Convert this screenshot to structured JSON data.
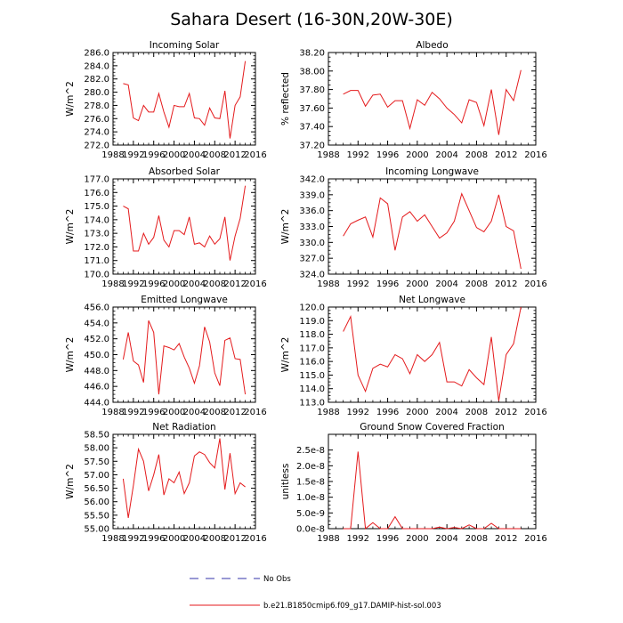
{
  "title": "Sahara Desert (16-30N,20W-30E)",
  "legend": [
    {
      "label": "No Obs",
      "color": "#3333aa",
      "dash": true
    },
    {
      "label": "b.e21.B1850cmip6.f09_g17.DAMIP-hist-sol.003",
      "color": "#e41a1c",
      "dash": false
    }
  ],
  "chart_data": [
    {
      "type": "line",
      "title": "Incoming Solar",
      "ylabel": "W/m^2",
      "xlim": [
        1988,
        2016
      ],
      "ylim": [
        272,
        286
      ],
      "x_ticks": [
        "1988",
        "1992",
        "1996",
        "2000",
        "2004",
        "2008",
        "2012",
        "2016"
      ],
      "y_ticks": [
        "272.0",
        "274.0",
        "276.0",
        "278.0",
        "280.0",
        "282.0",
        "284.0",
        "286.0"
      ],
      "y_tick_values": [
        272,
        274,
        276,
        278,
        280,
        282,
        284,
        286
      ],
      "x": [
        1990,
        1991,
        1992,
        1993,
        1994,
        1995,
        1996,
        1997,
        1998,
        1999,
        2000,
        2001,
        2002,
        2003,
        2004,
        2005,
        2006,
        2007,
        2008,
        2009,
        2010,
        2011,
        2012,
        2013,
        2014
      ],
      "values": [
        281.3,
        281.1,
        276.1,
        275.7,
        278.0,
        277.0,
        277.0,
        279.8,
        277.0,
        274.7,
        278.0,
        277.8,
        277.8,
        279.8,
        276.1,
        276.0,
        275.0,
        277.6,
        276.1,
        276.0,
        280.2,
        273.0,
        278.0,
        279.3,
        284.7
      ],
      "color": "#e41a1c"
    },
    {
      "type": "line",
      "title": "Albedo",
      "ylabel": "% reflected",
      "xlim": [
        1988,
        2016
      ],
      "ylim": [
        37.2,
        38.2
      ],
      "x_ticks": [
        "1988",
        "1992",
        "1996",
        "2000",
        "2004",
        "2008",
        "2012",
        "2016"
      ],
      "y_ticks": [
        "37.20",
        "37.40",
        "37.60",
        "37.80",
        "38.00",
        "38.20"
      ],
      "y_tick_values": [
        37.2,
        37.4,
        37.6,
        37.8,
        38.0,
        38.2
      ],
      "x": [
        1990,
        1991,
        1992,
        1993,
        1994,
        1995,
        1996,
        1997,
        1998,
        1999,
        2000,
        2001,
        2002,
        2003,
        2004,
        2005,
        2006,
        2007,
        2008,
        2009,
        2010,
        2011,
        2012,
        2013,
        2014
      ],
      "values": [
        37.75,
        37.79,
        37.79,
        37.62,
        37.74,
        37.75,
        37.61,
        37.68,
        37.68,
        37.38,
        37.69,
        37.63,
        37.77,
        37.7,
        37.6,
        37.53,
        37.44,
        37.69,
        37.66,
        37.41,
        37.8,
        37.31,
        37.8,
        37.68,
        38.01
      ],
      "color": "#e41a1c"
    },
    {
      "type": "line",
      "title": "Absorbed Solar",
      "ylabel": "W/m^2",
      "xlim": [
        1988,
        2016
      ],
      "ylim": [
        170,
        177
      ],
      "x_ticks": [
        "1988",
        "1992",
        "1996",
        "2000",
        "2004",
        "2008",
        "2012",
        "2016"
      ],
      "y_ticks": [
        "170.0",
        "171.0",
        "172.0",
        "173.0",
        "174.0",
        "175.0",
        "176.0",
        "177.0"
      ],
      "y_tick_values": [
        170,
        171,
        172,
        173,
        174,
        175,
        176,
        177
      ],
      "x": [
        1990,
        1991,
        1992,
        1993,
        1994,
        1995,
        1996,
        1997,
        1998,
        1999,
        2000,
        2001,
        2002,
        2003,
        2004,
        2005,
        2006,
        2007,
        2008,
        2009,
        2010,
        2011,
        2012,
        2013,
        2014
      ],
      "values": [
        175.0,
        174.8,
        171.7,
        171.7,
        173.0,
        172.2,
        172.7,
        174.3,
        172.5,
        172.0,
        173.2,
        173.2,
        172.9,
        174.2,
        172.2,
        172.3,
        172.0,
        172.8,
        172.2,
        172.6,
        174.2,
        171.0,
        172.8,
        174.1,
        176.5
      ],
      "color": "#e41a1c"
    },
    {
      "type": "line",
      "title": "Incoming Longwave",
      "ylabel": "W/m^2",
      "xlim": [
        1988,
        2016
      ],
      "ylim": [
        324,
        342
      ],
      "x_ticks": [
        "1988",
        "1992",
        "1996",
        "2000",
        "2004",
        "2008",
        "2012",
        "2016"
      ],
      "y_ticks": [
        "324.0",
        "327.0",
        "330.0",
        "333.0",
        "336.0",
        "339.0",
        "342.0"
      ],
      "y_tick_values": [
        324,
        327,
        330,
        333,
        336,
        339,
        342
      ],
      "x": [
        1990,
        1991,
        1992,
        1993,
        1994,
        1995,
        1996,
        1997,
        1998,
        1999,
        2000,
        2001,
        2002,
        2003,
        2004,
        2005,
        2006,
        2007,
        2008,
        2009,
        2010,
        2011,
        2012,
        2013,
        2014
      ],
      "values": [
        331.2,
        333.5,
        334.2,
        334.8,
        331.0,
        338.4,
        337.3,
        328.5,
        334.8,
        335.8,
        334.0,
        335.2,
        333.0,
        330.8,
        331.8,
        334.0,
        339.2,
        336.0,
        332.8,
        332.0,
        334.0,
        339.0,
        333.0,
        332.2,
        325.0
      ],
      "color": "#e41a1c"
    },
    {
      "type": "line",
      "title": "Emitted Longwave",
      "ylabel": "W/m^2",
      "xlim": [
        1988,
        2016
      ],
      "ylim": [
        444,
        456
      ],
      "x_ticks": [
        "1988",
        "1992",
        "1996",
        "2000",
        "2004",
        "2008",
        "2012",
        "2016"
      ],
      "y_ticks": [
        "444.0",
        "446.0",
        "448.0",
        "450.0",
        "452.0",
        "454.0",
        "456.0"
      ],
      "y_tick_values": [
        444,
        446,
        448,
        450,
        452,
        454,
        456
      ],
      "x": [
        1990,
        1991,
        1992,
        1993,
        1994,
        1995,
        1996,
        1997,
        1998,
        1999,
        2000,
        2001,
        2002,
        2003,
        2004,
        2005,
        2006,
        2007,
        2008,
        2009,
        2010,
        2011,
        2012,
        2013,
        2014
      ],
      "values": [
        449.4,
        452.8,
        449.2,
        448.7,
        446.5,
        454.3,
        452.8,
        445.0,
        451.1,
        450.9,
        450.6,
        451.4,
        449.7,
        448.3,
        446.4,
        448.6,
        453.5,
        451.6,
        447.7,
        446.1,
        451.8,
        452.1,
        449.5,
        449.4,
        445.0
      ],
      "color": "#e41a1c"
    },
    {
      "type": "line",
      "title": "Net Longwave",
      "ylabel": "W/m^2",
      "xlim": [
        1988,
        2016
      ],
      "ylim": [
        113,
        120
      ],
      "x_ticks": [
        "1988",
        "1992",
        "1996",
        "2000",
        "2004",
        "2008",
        "2012",
        "2016"
      ],
      "y_ticks": [
        "113.0",
        "114.0",
        "115.0",
        "116.0",
        "117.0",
        "118.0",
        "119.0",
        "120.0"
      ],
      "y_tick_values": [
        113,
        114,
        115,
        116,
        117,
        118,
        119,
        120
      ],
      "x": [
        1990,
        1991,
        1992,
        1993,
        1994,
        1995,
        1996,
        1997,
        1998,
        1999,
        2000,
        2001,
        2002,
        2003,
        2004,
        2005,
        2006,
        2007,
        2008,
        2009,
        2010,
        2011,
        2012,
        2013,
        2014
      ],
      "values": [
        118.2,
        119.3,
        115.0,
        113.8,
        115.5,
        115.8,
        115.6,
        116.5,
        116.2,
        115.1,
        116.5,
        116.0,
        116.5,
        117.4,
        114.5,
        114.5,
        114.2,
        115.4,
        114.8,
        114.3,
        117.8,
        113.1,
        116.5,
        117.3,
        120.0
      ],
      "color": "#e41a1c"
    },
    {
      "type": "line",
      "title": "Net Radiation",
      "ylabel": "W/m^2",
      "xlim": [
        1988,
        2016
      ],
      "ylim": [
        55.0,
        58.5
      ],
      "x_ticks": [
        "1988",
        "1992",
        "1996",
        "2000",
        "2004",
        "2008",
        "2012",
        "2016"
      ],
      "y_ticks": [
        "55.00",
        "55.50",
        "56.00",
        "56.50",
        "57.00",
        "57.50",
        "58.00",
        "58.50"
      ],
      "y_tick_values": [
        55.0,
        55.5,
        56.0,
        56.5,
        57.0,
        57.5,
        58.0,
        58.5
      ],
      "x": [
        1990,
        1991,
        1992,
        1993,
        1994,
        1995,
        1996,
        1997,
        1998,
        1999,
        2000,
        2001,
        2002,
        2003,
        2004,
        2005,
        2006,
        2007,
        2008,
        2009,
        2010,
        2011,
        2012,
        2013,
        2014
      ],
      "values": [
        56.85,
        55.4,
        56.6,
        57.95,
        57.5,
        56.4,
        57.0,
        57.75,
        56.25,
        56.85,
        56.7,
        57.1,
        56.3,
        56.7,
        57.7,
        57.85,
        57.75,
        57.45,
        57.25,
        58.35,
        56.45,
        57.8,
        56.3,
        56.7,
        56.55
      ],
      "color": "#e41a1c"
    },
    {
      "type": "line",
      "title": "Ground Snow Covered Fraction",
      "ylabel": "unitless",
      "xlim": [
        1988,
        2016
      ],
      "ylim": [
        0,
        3e-08
      ],
      "x_ticks": [
        "1988",
        "1992",
        "1996",
        "2000",
        "2004",
        "2008",
        "2012",
        "2016"
      ],
      "y_ticks": [
        "0.0e-8",
        "5.0e-9",
        "1.0e-8",
        "1.5e-8",
        "2.0e-8",
        "2.5e-8"
      ],
      "y_tick_values": [
        0,
        5e-09,
        1e-08,
        1.5e-08,
        2e-08,
        2.5e-08
      ],
      "x": [
        1990,
        1991,
        1992,
        1993,
        1994,
        1995,
        1996,
        1997,
        1998,
        1999,
        2000,
        2001,
        2002,
        2003,
        2004,
        2005,
        2006,
        2007,
        2008,
        2009,
        2010,
        2011,
        2012,
        2013,
        2014
      ],
      "values": [
        0,
        0,
        2.45e-08,
        0,
        1.9e-09,
        0,
        0,
        3.8e-09,
        0,
        0,
        0,
        0,
        0,
        5e-10,
        0,
        4e-10,
        0,
        1.2e-09,
        0,
        0,
        1.7e-09,
        0,
        0,
        0,
        0
      ],
      "color": "#e41a1c"
    }
  ]
}
